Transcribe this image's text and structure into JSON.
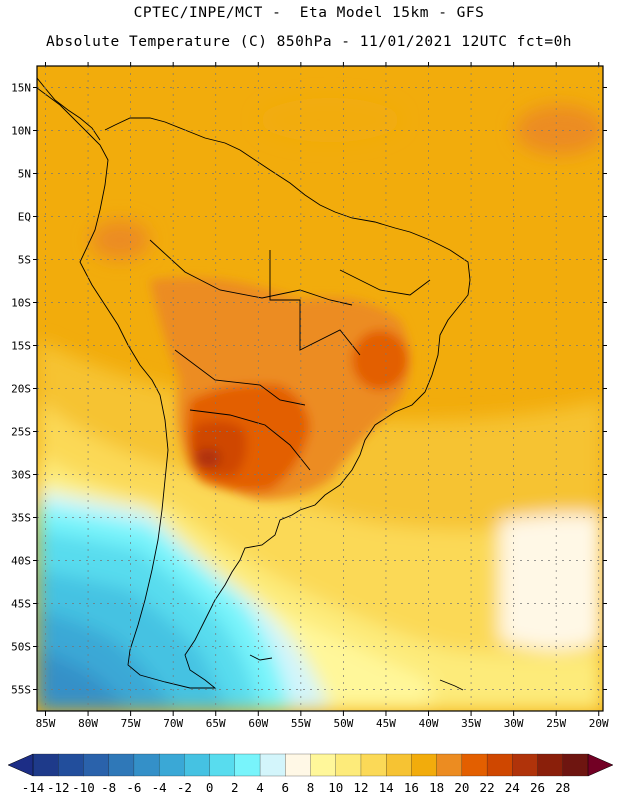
{
  "chart_data": {
    "type": "heatmap",
    "title": "CPTEC/INPE/MCT -  Eta Model 15km - GFS",
    "subtitle": "Absolute Temperature (C) 850hPa - 11/01/2021 12UTC fct=0h",
    "variable": "Absolute Temperature (C) 850hPa",
    "x_ticks": [
      "85W",
      "80W",
      "75W",
      "70W",
      "65W",
      "60W",
      "55W",
      "50W",
      "45W",
      "40W",
      "35W",
      "30W",
      "25W",
      "20W"
    ],
    "y_ticks": [
      "15N",
      "10N",
      "5N",
      "EQ",
      "5S",
      "10S",
      "15S",
      "20S",
      "25S",
      "30S",
      "35S",
      "40S",
      "45S",
      "50S",
      "55S"
    ],
    "xlim": [
      -86,
      -19.5
    ],
    "ylim": [
      -57.5,
      17.5
    ],
    "grid": true,
    "colorbar": {
      "levels": [
        "-14",
        "-12",
        "-10",
        "-8",
        "-6",
        "-4",
        "-2",
        "0",
        "2",
        "4",
        "6",
        "8",
        "10",
        "12",
        "14",
        "16",
        "18",
        "20",
        "22",
        "24",
        "26",
        "28"
      ],
      "colors": [
        "#1e3a8a",
        "#224e9c",
        "#2a62ab",
        "#2f78b8",
        "#3490c8",
        "#3aa8d6",
        "#45c2e2",
        "#58dcee",
        "#78f4fb",
        "#d3f5fb",
        "#fff8e6",
        "#fff79a",
        "#fdeb7a",
        "#fbd957",
        "#f6c333",
        "#f2ac0c",
        "#ec8c21",
        "#e35f00",
        "#cf4700",
        "#b0330a",
        "#8a1f0a",
        "#6e1510"
      ],
      "under_color": "#1c2d86",
      "over_color": "#720024"
    }
  }
}
